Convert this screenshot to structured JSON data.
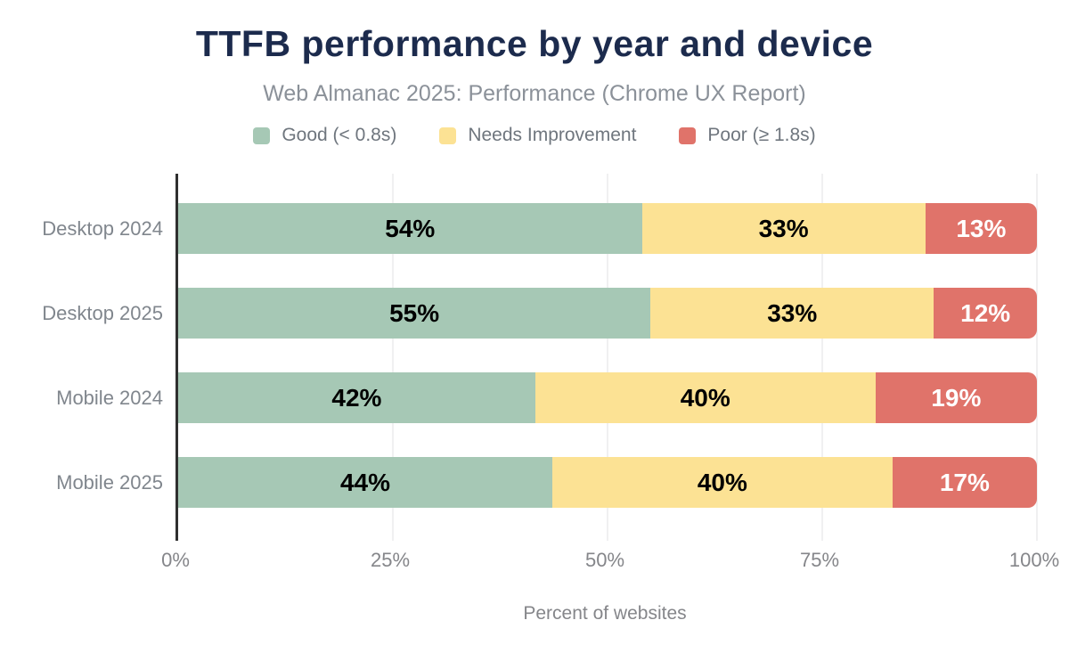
{
  "header": {
    "title": "TTFB performance by year and device",
    "subtitle": "Web Almanac 2025: Performance (Chrome UX Report)"
  },
  "legend": [
    {
      "label": "Good (< 0.8s)",
      "color": "#a6c8b5"
    },
    {
      "label": "Needs Improvement",
      "color": "#fce294"
    },
    {
      "label": "Poor (≥ 1.8s)",
      "color": "#e0736a"
    }
  ],
  "chart_data": {
    "type": "bar",
    "orientation": "horizontal",
    "stacked": true,
    "title": "TTFB performance by year and device",
    "subtitle": "Web Almanac 2025: Performance (Chrome UX Report)",
    "categories": [
      "Desktop 2024",
      "Desktop 2025",
      "Mobile 2024",
      "Mobile 2025"
    ],
    "series": [
      {
        "name": "Good (< 0.8s)",
        "color": "#a6c8b5",
        "label_color": "#000000",
        "values": [
          54,
          55,
          42,
          44
        ]
      },
      {
        "name": "Needs Improvement",
        "color": "#fce294",
        "label_color": "#000000",
        "values": [
          33,
          33,
          40,
          40
        ]
      },
      {
        "name": "Poor (≥ 1.8s)",
        "color": "#e0736a",
        "label_color": "#ffffff",
        "values": [
          13,
          12,
          19,
          17
        ]
      }
    ],
    "value_label_suffix": "%",
    "xlabel": "Percent of websites",
    "ylabel": "",
    "x_ticks": [
      "0%",
      "25%",
      "50%",
      "75%",
      "100%"
    ],
    "xlim": [
      0,
      100
    ],
    "grid": true,
    "legend_position": "top"
  },
  "colors": {
    "title": "#1c2b4d",
    "subtitle": "#8b9199",
    "category_label": "#80868d",
    "tick_label": "#85868a",
    "axis_line": "#2f2f2f",
    "gridline": "#f0f0f1"
  }
}
